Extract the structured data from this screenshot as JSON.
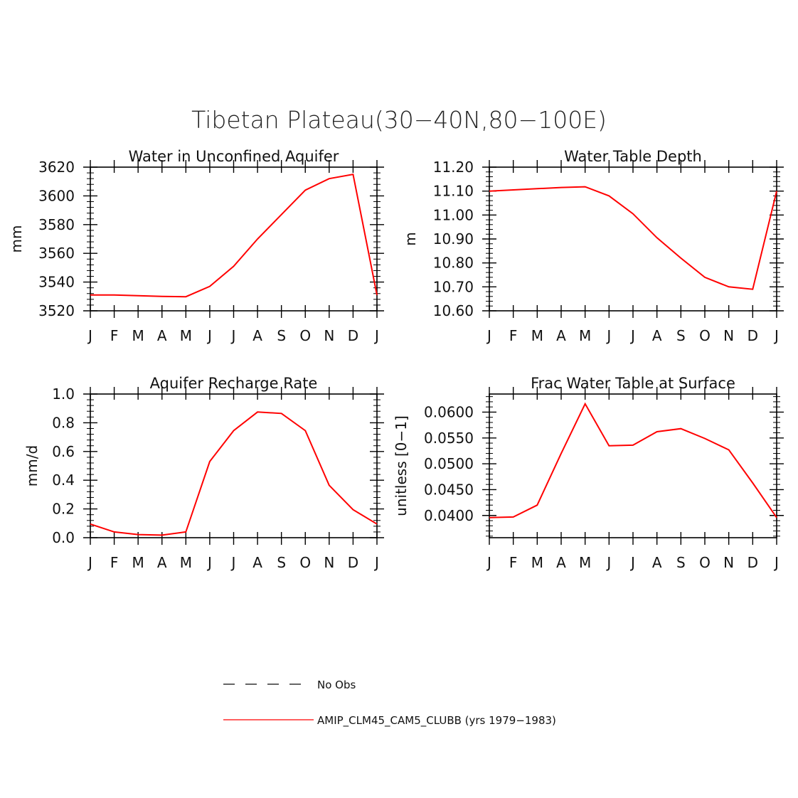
{
  "figure": {
    "title": "Tibetan Plateau(30−40N,80−100E)"
  },
  "legend": {
    "entries": [
      {
        "label": "No Obs",
        "style": "dashed",
        "color": "#333333"
      },
      {
        "label": "AMIP_CLM45_CAM5_CLUBB (yrs 1979−1983)",
        "style": "solid",
        "color": "#ff0000"
      }
    ]
  },
  "chart_data": [
    {
      "type": "line",
      "title": "Water in Unconfined Aquifer",
      "ylabel": "mm",
      "xlabel": "",
      "categories": [
        "J",
        "F",
        "M",
        "A",
        "M",
        "J",
        "J",
        "A",
        "S",
        "O",
        "N",
        "D",
        "J"
      ],
      "ylim": [
        3520,
        3620
      ],
      "yticks": [
        3520,
        3540,
        3560,
        3580,
        3600,
        3620
      ],
      "ytick_labels": [
        "3520",
        "3540",
        "3560",
        "3580",
        "3600",
        "3620"
      ],
      "series": [
        {
          "color": "#ff0000",
          "values": [
            3531,
            3531,
            3530.5,
            3530,
            3529.8,
            3537,
            3551,
            3570,
            3587,
            3604,
            3612,
            3615,
            3531
          ]
        }
      ]
    },
    {
      "type": "line",
      "title": "Water Table Depth",
      "ylabel": "m",
      "xlabel": "",
      "categories": [
        "J",
        "F",
        "M",
        "A",
        "M",
        "J",
        "J",
        "A",
        "S",
        "O",
        "N",
        "D",
        "J"
      ],
      "ylim": [
        10.6,
        11.2
      ],
      "yticks": [
        10.6,
        10.7,
        10.8,
        10.9,
        11.0,
        11.1,
        11.2
      ],
      "ytick_labels": [
        "10.60",
        "10.70",
        "10.80",
        "10.90",
        "11.00",
        "11.10",
        "11.20"
      ],
      "series": [
        {
          "color": "#ff0000",
          "values": [
            11.1,
            11.105,
            11.11,
            11.115,
            11.118,
            11.08,
            11.005,
            10.905,
            10.82,
            10.74,
            10.7,
            10.69,
            11.1
          ]
        }
      ]
    },
    {
      "type": "line",
      "title": "Aquifer Recharge Rate",
      "ylabel": "mm/d",
      "xlabel": "",
      "categories": [
        "J",
        "F",
        "M",
        "A",
        "M",
        "J",
        "J",
        "A",
        "S",
        "O",
        "N",
        "D",
        "J"
      ],
      "ylim": [
        0.0,
        1.0
      ],
      "yticks": [
        0.0,
        0.2,
        0.4,
        0.6,
        0.8,
        1.0
      ],
      "ytick_labels": [
        "0.0",
        "0.2",
        "0.4",
        "0.6",
        "0.8",
        "1.0"
      ],
      "series": [
        {
          "color": "#ff0000",
          "values": [
            0.095,
            0.04,
            0.022,
            0.018,
            0.04,
            0.53,
            0.745,
            0.875,
            0.865,
            0.745,
            0.365,
            0.195,
            0.095
          ]
        }
      ]
    },
    {
      "type": "line",
      "title": "Frac Water Table at Surface",
      "ylabel": "unitless [0−1]",
      "xlabel": "",
      "categories": [
        "J",
        "F",
        "M",
        "A",
        "M",
        "J",
        "J",
        "A",
        "S",
        "O",
        "N",
        "D",
        "J"
      ],
      "ylim": [
        0.0357,
        0.0635
      ],
      "yticks": [
        0.04,
        0.045,
        0.05,
        0.055,
        0.06
      ],
      "ytick_labels": [
        "0.0400",
        "0.0450",
        "0.0500",
        "0.0550",
        "0.0600"
      ],
      "series": [
        {
          "color": "#ff0000",
          "values": [
            0.0396,
            0.0397,
            0.042,
            0.052,
            0.0616,
            0.0535,
            0.0536,
            0.0562,
            0.0568,
            0.0549,
            0.0527,
            0.0463,
            0.0396
          ]
        }
      ]
    }
  ]
}
